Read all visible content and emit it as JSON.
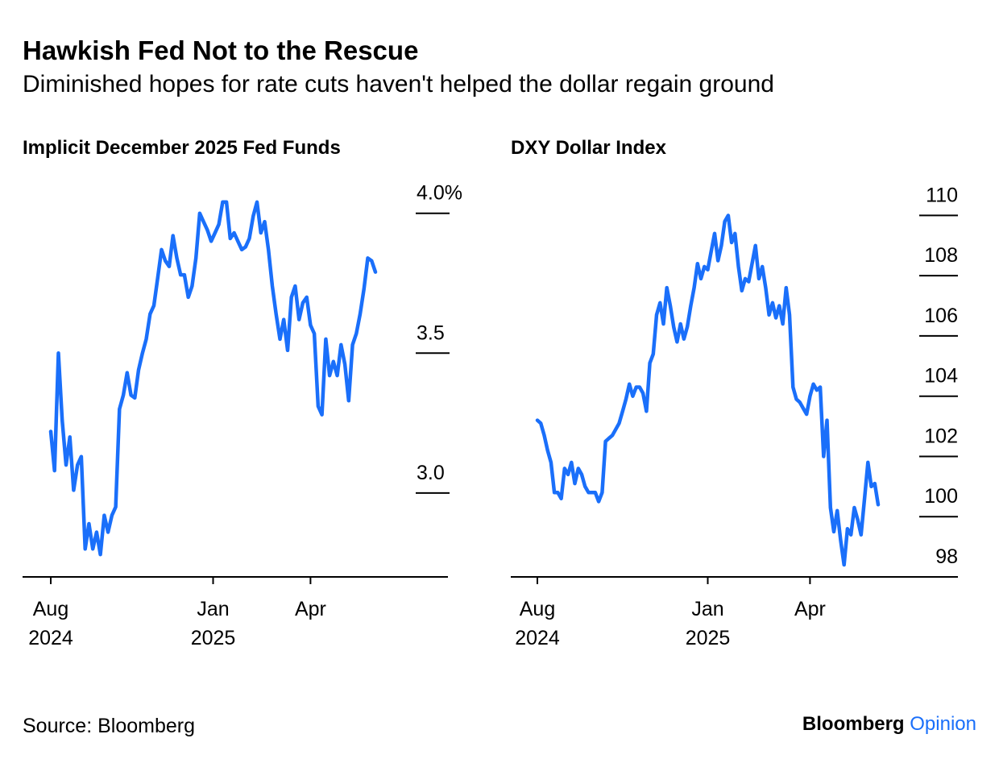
{
  "title": "Hawkish Fed Not to the Rescue",
  "subtitle": "Diminished hopes for rate cuts haven't helped the dollar regain ground",
  "source": "Source: Bloomberg",
  "logo": {
    "brand": "Bloomberg",
    "product": "Opinion"
  },
  "chart_data": [
    {
      "type": "line",
      "title": "Implicit December 2025 Fed Funds",
      "xlim": [
        "2024-08",
        "2025-06"
      ],
      "xticks": [
        {
          "value": "2024-08",
          "label": "Aug\n2024"
        },
        {
          "value": "2025-01",
          "label": "Jan\n2025"
        },
        {
          "value": "2025-04",
          "label": "Apr"
        }
      ],
      "ylim": [
        2.7,
        4.1
      ],
      "yticks": [
        {
          "value": 3,
          "label": "3.0"
        },
        3.5,
        {
          "value": 4,
          "label": "4.0%"
        }
      ],
      "series": [
        {
          "color": "#1a6ffa",
          "values": [
            3.22,
            3.08,
            3.5,
            3.26,
            3.1,
            3.2,
            3.01,
            3.1,
            3.13,
            2.8,
            2.89,
            2.8,
            2.86,
            2.78,
            2.92,
            2.86,
            2.92,
            2.95,
            3.3,
            3.35,
            3.43,
            3.35,
            3.34,
            3.44,
            3.5,
            3.55,
            3.64,
            3.67,
            3.77,
            3.87,
            3.83,
            3.81,
            3.92,
            3.84,
            3.78,
            3.78,
            3.7,
            3.74,
            3.84,
            4.0,
            3.97,
            3.94,
            3.9,
            3.93,
            3.96,
            4.04,
            4.04,
            3.91,
            3.93,
            3.9,
            3.87,
            3.88,
            3.91,
            3.99,
            4.04,
            3.93,
            3.97,
            3.87,
            3.74,
            3.64,
            3.55,
            3.62,
            3.51,
            3.7,
            3.74,
            3.62,
            3.68,
            3.7,
            3.6,
            3.57,
            3.31,
            3.28,
            3.55,
            3.42,
            3.47,
            3.42,
            3.53,
            3.46,
            3.33,
            3.53,
            3.57,
            3.64,
            3.73,
            3.84,
            3.83,
            3.79
          ]
        }
      ]
    },
    {
      "type": "line",
      "title": "DXY Dollar Index",
      "xlim": [
        "2024-08",
        "2025-06"
      ],
      "xticks": [
        {
          "value": "2024-08",
          "label": "Aug\n2024"
        },
        {
          "value": "2025-01",
          "label": "Jan\n2025"
        },
        {
          "value": "2025-04",
          "label": "Apr"
        }
      ],
      "ylim": [
        98,
        111
      ],
      "yticks": [
        98,
        100,
        102,
        104,
        106,
        108,
        110
      ],
      "series": [
        {
          "color": "#1a6ffa",
          "values": [
            103.2,
            103.1,
            102.7,
            102.2,
            101.8,
            100.8,
            100.8,
            100.6,
            101.6,
            101.4,
            101.8,
            101.1,
            101.6,
            101.4,
            101.0,
            100.8,
            100.8,
            100.8,
            100.5,
            100.8,
            102.5,
            102.6,
            102.7,
            102.9,
            103.1,
            103.5,
            103.9,
            104.4,
            104.0,
            104.3,
            104.3,
            104.1,
            103.5,
            105.1,
            105.4,
            106.7,
            107.1,
            106.4,
            107.6,
            107.0,
            106.3,
            105.8,
            106.4,
            105.9,
            106.3,
            107.0,
            107.6,
            108.4,
            107.9,
            108.3,
            108.2,
            108.8,
            109.4,
            108.5,
            109.0,
            109.8,
            110.0,
            109.1,
            109.4,
            108.3,
            107.5,
            107.9,
            107.8,
            108.4,
            109.0,
            107.9,
            108.3,
            107.6,
            106.7,
            107.1,
            106.6,
            107.0,
            106.4,
            107.6,
            106.7,
            104.3,
            103.9,
            103.8,
            103.6,
            103.4,
            104.0,
            104.4,
            104.2,
            104.3,
            102.0,
            103.2,
            100.3,
            99.5,
            100.2,
            99.2,
            98.4,
            99.6,
            99.4,
            100.3,
            99.9,
            99.4,
            100.6,
            101.8,
            101.0,
            101.1,
            100.4
          ]
        }
      ]
    }
  ]
}
